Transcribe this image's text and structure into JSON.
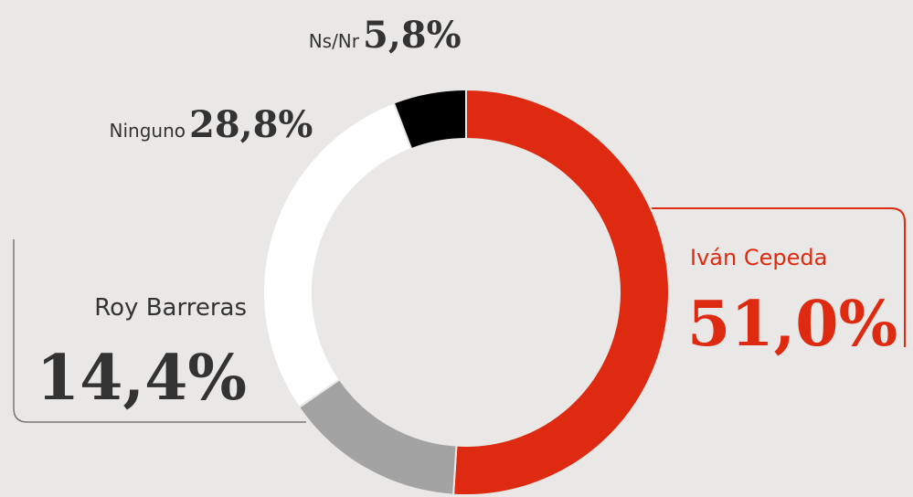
{
  "chart_data": {
    "type": "pie",
    "donut": true,
    "categories": [
      "Iván Cepeda",
      "Roy Barreras",
      "Ninguno",
      "Ns/Nr"
    ],
    "values": [
      51.0,
      14.4,
      28.8,
      5.8
    ],
    "value_labels": [
      "51,0%",
      "14,4%",
      "28,8%",
      "5,8%"
    ],
    "colors": [
      "#dd2a10",
      "#a3a3a3",
      "#ffffff",
      "#000000"
    ]
  }
}
